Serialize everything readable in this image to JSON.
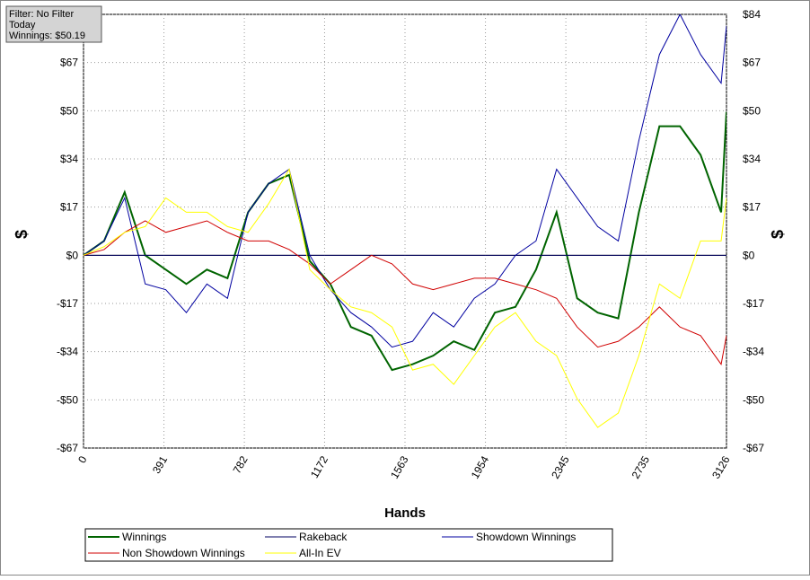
{
  "chart_data": {
    "type": "line",
    "annotations": [
      "Filter: No Filter",
      "Today",
      "Winnings: $50.19"
    ],
    "xlabel": "Hands",
    "ylabel": "$",
    "y2label": "$",
    "x": [
      0,
      100,
      200,
      300,
      400,
      500,
      600,
      700,
      800,
      900,
      1000,
      1100,
      1200,
      1300,
      1400,
      1500,
      1600,
      1700,
      1800,
      1900,
      2000,
      2100,
      2200,
      2300,
      2400,
      2500,
      2600,
      2700,
      2800,
      2900,
      3000,
      3100,
      3126
    ],
    "series": [
      {
        "name": "Winnings",
        "color": "#006400",
        "width": 2,
        "values": [
          0,
          5,
          22,
          0,
          -5,
          -10,
          -5,
          -8,
          15,
          25,
          28,
          -2,
          -10,
          -25,
          -28,
          -40,
          -38,
          -35,
          -30,
          -33,
          -20,
          -18,
          -5,
          15,
          -15,
          -20,
          -22,
          15,
          45,
          45,
          35,
          15,
          50
        ]
      },
      {
        "name": "Rakeback",
        "color": "#000060",
        "width": 1,
        "values": [
          0,
          0,
          0,
          0,
          0,
          0,
          0,
          0,
          0,
          0,
          0,
          0,
          0,
          0,
          0,
          0,
          0,
          0,
          0,
          0,
          0,
          0,
          0,
          0,
          0,
          0,
          0,
          0,
          0,
          0,
          0,
          0,
          0
        ]
      },
      {
        "name": "Showdown Winnings",
        "color": "#0000a0",
        "width": 1,
        "values": [
          0,
          5,
          20,
          -10,
          -12,
          -20,
          -10,
          -15,
          15,
          25,
          30,
          0,
          -12,
          -20,
          -25,
          -32,
          -30,
          -20,
          -25,
          -15,
          -10,
          0,
          5,
          30,
          20,
          10,
          5,
          40,
          70,
          84,
          70,
          60,
          80
        ]
      },
      {
        "name": "Non Showdown Winnings",
        "color": "#d00000",
        "width": 1,
        "values": [
          0,
          2,
          8,
          12,
          8,
          10,
          12,
          8,
          5,
          5,
          2,
          -3,
          -10,
          -5,
          0,
          -3,
          -10,
          -12,
          -10,
          -8,
          -8,
          -10,
          -12,
          -15,
          -25,
          -32,
          -30,
          -25,
          -18,
          -25,
          -28,
          -38,
          -28
        ]
      },
      {
        "name": "All-In EV",
        "color": "#ffff00",
        "width": 1,
        "values": [
          0,
          3,
          8,
          10,
          20,
          15,
          15,
          10,
          8,
          18,
          30,
          -5,
          -12,
          -18,
          -20,
          -25,
          -40,
          -38,
          -45,
          -35,
          -25,
          -20,
          -30,
          -35,
          -50,
          -60,
          -55,
          -35,
          -10,
          -15,
          5,
          5,
          20
        ]
      }
    ],
    "xlim": [
      0,
      3126
    ],
    "xticks": [
      0,
      391,
      782,
      1172,
      1563,
      1954,
      2345,
      2735,
      3126
    ],
    "ylim": [
      -67.2,
      84
    ],
    "yticks": [
      {
        "value": -67.2,
        "label": "-$67"
      },
      {
        "value": -50.4,
        "label": "-$50"
      },
      {
        "value": -33.6,
        "label": "-$34"
      },
      {
        "value": -16.8,
        "label": "-$17"
      },
      {
        "value": 0,
        "label": "$0"
      },
      {
        "value": 16.8,
        "label": "$17"
      },
      {
        "value": 33.6,
        "label": "$34"
      },
      {
        "value": 50.4,
        "label": "$50"
      },
      {
        "value": 67.2,
        "label": "$67"
      },
      {
        "value": 84,
        "label": "$84"
      }
    ],
    "grid": true
  }
}
